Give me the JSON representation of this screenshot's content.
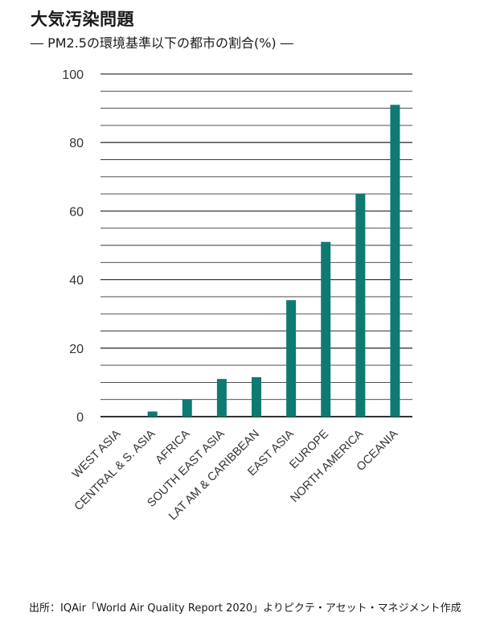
{
  "title": "大気汚染問題",
  "subtitle": "― PM2.5の環境基準以下の都市の割合(%) ―",
  "source": "出所：IQAir「World Air Quality Report 2020」よりピクテ・アセット・マネジメント作成",
  "colors": {
    "bar": "#0f7a72",
    "grid": "#3a3a3a",
    "axis": "#333333"
  },
  "chart_data": {
    "type": "bar",
    "title": "大気汚染問題",
    "subtitle": "PM2.5の環境基準以下の都市の割合(%)",
    "categories": [
      "WEST ASIA",
      "CENTRAL & S. ASIA",
      "AFRICA",
      "SOUTH EAST ASIA",
      "LAT AM & CARIBBEAN",
      "EAST ASIA",
      "EUROPE",
      "NORTH AMERICA",
      "OCEANIA"
    ],
    "values": [
      0,
      1.5,
      5,
      11,
      11.5,
      34,
      51,
      65,
      91
    ],
    "xlabel": "",
    "ylabel": "",
    "ylim": [
      0,
      100
    ],
    "yticks": [
      0,
      20,
      40,
      60,
      80,
      100
    ],
    "minor_grid_step": 5,
    "grid": true,
    "legend": "none"
  }
}
